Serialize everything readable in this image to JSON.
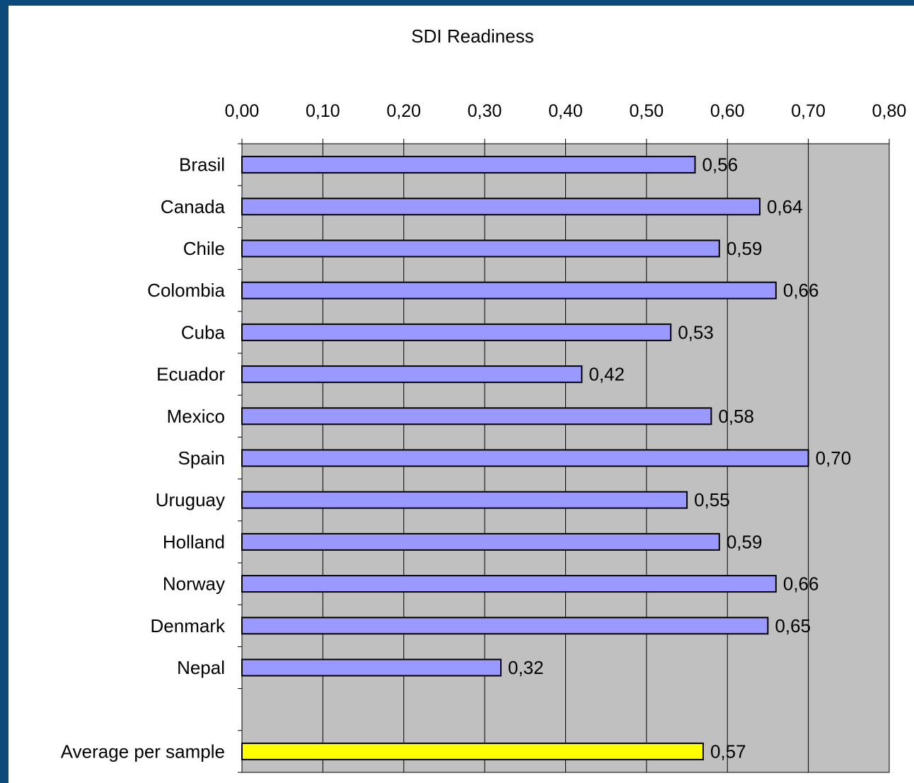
{
  "chart_data": {
    "type": "bar",
    "orientation": "horizontal",
    "title": "SDI Readiness",
    "xlabel": "",
    "ylabel": "",
    "xlim": [
      0,
      0.8
    ],
    "x_ticks": [
      "0,00",
      "0,10",
      "0,20",
      "0,30",
      "0,40",
      "0,50",
      "0,60",
      "0,70",
      "0,80"
    ],
    "x_axis_position": "top",
    "grid": true,
    "legend": "none",
    "categories": [
      "Brasil",
      "Canada",
      "Chile",
      "Colombia",
      "Cuba",
      "Ecuador",
      "Mexico",
      "Spain",
      "Uruguay",
      "Holland",
      "Norway",
      "Denmark",
      "Nepal",
      "",
      "Average per sample"
    ],
    "values": [
      0.56,
      0.64,
      0.59,
      0.66,
      0.53,
      0.42,
      0.58,
      0.7,
      0.55,
      0.59,
      0.66,
      0.65,
      0.32,
      null,
      0.57
    ],
    "data_labels": [
      "0,56",
      "0,64",
      "0,59",
      "0,66",
      "0,53",
      "0,42",
      "0,58",
      "0,70",
      "0,55",
      "0,59",
      "0,66",
      "0,65",
      "0,32",
      "",
      "0,57"
    ],
    "bar_colors": [
      "#9999ff",
      "#9999ff",
      "#9999ff",
      "#9999ff",
      "#9999ff",
      "#9999ff",
      "#9999ff",
      "#9999ff",
      "#9999ff",
      "#9999ff",
      "#9999ff",
      "#9999ff",
      "#9999ff",
      "#9999ff",
      "#ffff00"
    ],
    "colors": {
      "frame": "#0b4a7a",
      "panel": "#ffffff",
      "plot_area": "#c0c0c0",
      "gridline": "#000000",
      "bar_outline": "#000000"
    }
  }
}
